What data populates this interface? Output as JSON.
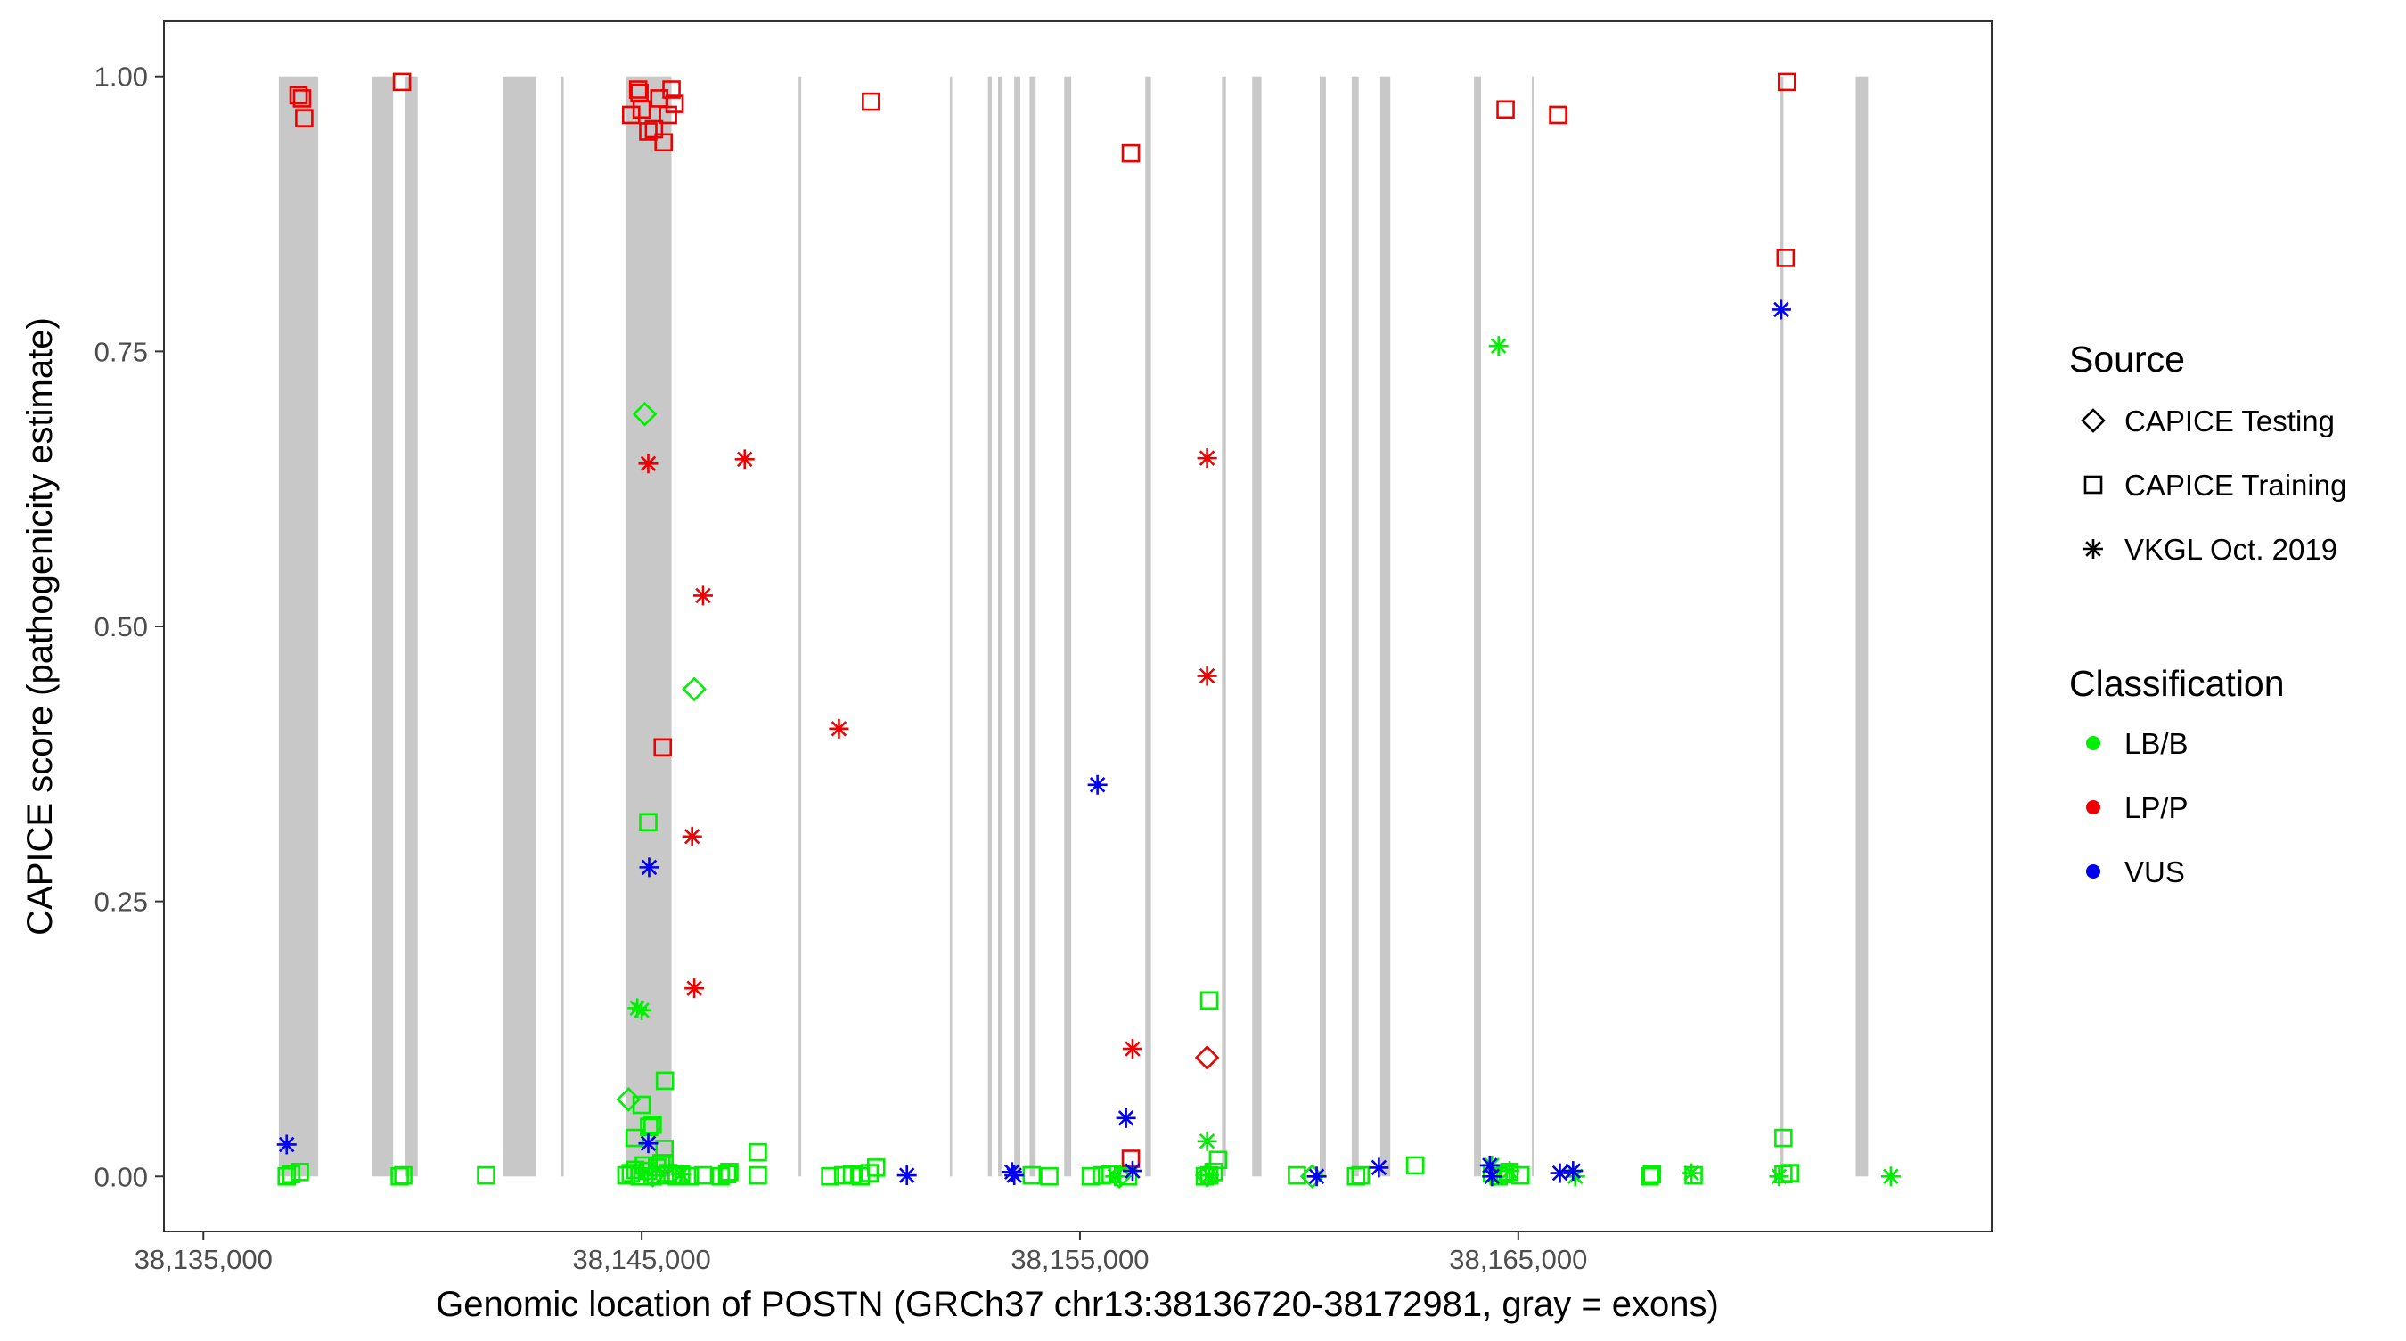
{
  "chart_data": {
    "type": "scatter",
    "xlabel": "Genomic location of POSTN (GRCh37 chr13:38136720-38172981, gray = exons)",
    "ylabel": "CAPICE score (pathogenicity estimate)",
    "xlim": [
      38134100,
      38175800
    ],
    "ylim": [
      -0.05,
      1.05
    ],
    "x_ticks": [
      38135000,
      38145000,
      38155000,
      38165000
    ],
    "x_tick_labels": [
      "38,135,000",
      "38,145,000",
      "38,155,000",
      "38,165,000"
    ],
    "y_ticks": [
      0,
      0.25,
      0.5,
      0.75,
      1
    ],
    "y_tick_labels": [
      "0.00",
      "0.25",
      "0.50",
      "0.75",
      "1.00"
    ],
    "grid": false,
    "legend_placement": "right",
    "exons": [
      [
        38136720,
        38137620
      ],
      [
        38138840,
        38139330
      ],
      [
        38139600,
        38139890
      ],
      [
        38141830,
        38142590
      ],
      [
        38143150,
        38143220
      ],
      [
        38144650,
        38145680
      ],
      [
        38148580,
        38148640
      ],
      [
        38152030,
        38152070
      ],
      [
        38152900,
        38152990
      ],
      [
        38153130,
        38153210
      ],
      [
        38153500,
        38153640
      ],
      [
        38153850,
        38153990
      ],
      [
        38154640,
        38154800
      ],
      [
        38156490,
        38156620
      ],
      [
        38158240,
        38158330
      ],
      [
        38158930,
        38159140
      ],
      [
        38160470,
        38160610
      ],
      [
        38161200,
        38161360
      ],
      [
        38161850,
        38162080
      ],
      [
        38163990,
        38164150
      ],
      [
        38165310,
        38165360
      ],
      [
        38170960,
        38171050
      ],
      [
        38172700,
        38172981
      ]
    ],
    "legend": {
      "source_title": "Source",
      "source_items": [
        {
          "label": "CAPICE Testing",
          "shape": "diamond"
        },
        {
          "label": "CAPICE Training",
          "shape": "square"
        },
        {
          "label": "VKGL Oct. 2019",
          "shape": "asterisk"
        }
      ],
      "class_title": "Classification",
      "class_items": [
        {
          "label": "LB/B",
          "color": "#00ee00"
        },
        {
          "label": "LP/P",
          "color": "#ee0000"
        },
        {
          "label": "VUS",
          "color": "#0000ee"
        }
      ]
    },
    "series": [
      {
        "source": "CAPICE Training",
        "classification": "LP/P",
        "shape": "square",
        "color": "#ee0000",
        "points": [
          [
            38137170,
            0.983
          ],
          [
            38137250,
            0.98
          ],
          [
            38137300,
            0.962
          ],
          [
            38139530,
            0.995
          ],
          [
            38144760,
            0.965
          ],
          [
            38144920,
            0.988
          ],
          [
            38144950,
            0.985
          ],
          [
            38145000,
            0.97
          ],
          [
            38145150,
            0.95
          ],
          [
            38145280,
            0.952
          ],
          [
            38145400,
            0.98
          ],
          [
            38145500,
            0.94
          ],
          [
            38145680,
            0.988
          ],
          [
            38145750,
            0.975
          ],
          [
            38145600,
            0.965
          ],
          [
            38145480,
            0.39
          ],
          [
            38150230,
            0.977
          ],
          [
            38156160,
            0.93
          ],
          [
            38156160,
            0.016
          ],
          [
            38164710,
            0.97
          ],
          [
            38165910,
            0.965
          ],
          [
            38171130,
            0.995
          ],
          [
            38171100,
            0.835
          ]
        ]
      },
      {
        "source": "CAPICE Training",
        "classification": "LB/B",
        "shape": "square",
        "color": "#00ee00",
        "points": [
          [
            38136900,
            0.0
          ],
          [
            38137000,
            0.002
          ],
          [
            38137200,
            0.004
          ],
          [
            38139480,
            0.0
          ],
          [
            38139560,
            0.001
          ],
          [
            38141450,
            0.001
          ],
          [
            38144650,
            0.001
          ],
          [
            38144750,
            0.003
          ],
          [
            38144850,
            0.006
          ],
          [
            38144950,
            0.0
          ],
          [
            38145050,
            0.01
          ],
          [
            38145150,
            0.005
          ],
          [
            38145250,
            0.0
          ],
          [
            38145350,
            0.008
          ],
          [
            38145430,
            0.001
          ],
          [
            38145520,
            0.012
          ],
          [
            38145600,
            0.003
          ],
          [
            38145700,
            0.002
          ],
          [
            38145800,
            0.0
          ],
          [
            38145900,
            0.002
          ],
          [
            38146100,
            0.0
          ],
          [
            38146400,
            0.001
          ],
          [
            38146800,
            0.0
          ],
          [
            38146950,
            0.002
          ],
          [
            38147000,
            0.004
          ],
          [
            38147650,
            0.001
          ],
          [
            38147650,
            0.022
          ],
          [
            38145000,
            0.065
          ],
          [
            38145170,
            0.045
          ],
          [
            38145250,
            0.047
          ],
          [
            38145530,
            0.087
          ],
          [
            38145150,
            0.322
          ],
          [
            38145520,
            0.025
          ],
          [
            38145450,
            0.012
          ],
          [
            38144840,
            0.035
          ],
          [
            38149300,
            0.0
          ],
          [
            38149600,
            0.001
          ],
          [
            38149800,
            0.002
          ],
          [
            38150000,
            0.0
          ],
          [
            38150200,
            0.003
          ],
          [
            38150350,
            0.008
          ],
          [
            38153900,
            0.001
          ],
          [
            38154300,
            0.0
          ],
          [
            38155250,
            0.0
          ],
          [
            38155500,
            0.001
          ],
          [
            38155700,
            0.002
          ],
          [
            38156100,
            0.0
          ],
          [
            38157850,
            0.0
          ],
          [
            38157950,
            0.001
          ],
          [
            38158050,
            0.004
          ],
          [
            38158150,
            0.015
          ],
          [
            38157950,
            0.16
          ],
          [
            38159950,
            0.001
          ],
          [
            38161300,
            0.0
          ],
          [
            38161400,
            0.001
          ],
          [
            38162650,
            0.01
          ],
          [
            38164400,
            0.003
          ],
          [
            38164550,
            0.0
          ],
          [
            38164700,
            0.002
          ],
          [
            38164800,
            0.004
          ],
          [
            38165050,
            0.001
          ],
          [
            38168000,
            0.0
          ],
          [
            38168050,
            0.002
          ],
          [
            38169000,
            0.001
          ],
          [
            38171050,
            0.002
          ],
          [
            38171200,
            0.003
          ],
          [
            38171050,
            0.035
          ]
        ]
      },
      {
        "source": "CAPICE Testing",
        "classification": "LB/B",
        "shape": "diamond",
        "color": "#00ee00",
        "points": [
          [
            38145070,
            0.693
          ],
          [
            38146200,
            0.443
          ],
          [
            38144700,
            0.07
          ],
          [
            38145250,
            0.001
          ],
          [
            38155900,
            0.0
          ],
          [
            38157900,
            0.001
          ],
          [
            38160300,
            0.0
          ]
        ]
      },
      {
        "source": "CAPICE Testing",
        "classification": "LP/P",
        "shape": "diamond",
        "color": "#ee0000",
        "points": [
          [
            38157900,
            0.108
          ]
        ]
      },
      {
        "source": "VKGL Oct. 2019",
        "classification": "LP/P",
        "shape": "asterisk",
        "color": "#ee0000",
        "points": [
          [
            38145150,
            0.648
          ],
          [
            38147350,
            0.652
          ],
          [
            38146400,
            0.528
          ],
          [
            38146150,
            0.309
          ],
          [
            38146200,
            0.171
          ],
          [
            38149500,
            0.407
          ],
          [
            38157900,
            0.653
          ],
          [
            38157900,
            0.455
          ],
          [
            38156200,
            0.116
          ]
        ]
      },
      {
        "source": "VKGL Oct. 2019",
        "classification": "LB/B",
        "shape": "asterisk",
        "color": "#00ee00",
        "points": [
          [
            38144900,
            0.153
          ],
          [
            38145000,
            0.151
          ],
          [
            38145900,
            0.002
          ],
          [
            38155800,
            0.0
          ],
          [
            38157900,
            0.032
          ],
          [
            38157950,
            0.001
          ],
          [
            38164550,
            0.755
          ],
          [
            38164800,
            0.005
          ],
          [
            38166300,
            0.0
          ],
          [
            38168950,
            0.003
          ],
          [
            38170950,
            0.0
          ],
          [
            38173500,
            0.0
          ],
          [
            38164400,
            0.01
          ]
        ]
      },
      {
        "source": "VKGL Oct. 2019",
        "classification": "VUS",
        "shape": "asterisk",
        "color": "#0000ee",
        "points": [
          [
            38136900,
            0.029
          ],
          [
            38145170,
            0.281
          ],
          [
            38145150,
            0.03
          ],
          [
            38151050,
            0.001
          ],
          [
            38153450,
            0.004
          ],
          [
            38153500,
            0.001
          ],
          [
            38155400,
            0.356
          ],
          [
            38156050,
            0.053
          ],
          [
            38156200,
            0.005
          ],
          [
            38160400,
            0.0
          ],
          [
            38161820,
            0.008
          ],
          [
            38164350,
            0.01
          ],
          [
            38164400,
            0.0
          ],
          [
            38165950,
            0.003
          ],
          [
            38166250,
            0.005
          ],
          [
            38171000,
            0.788
          ]
        ]
      }
    ]
  }
}
